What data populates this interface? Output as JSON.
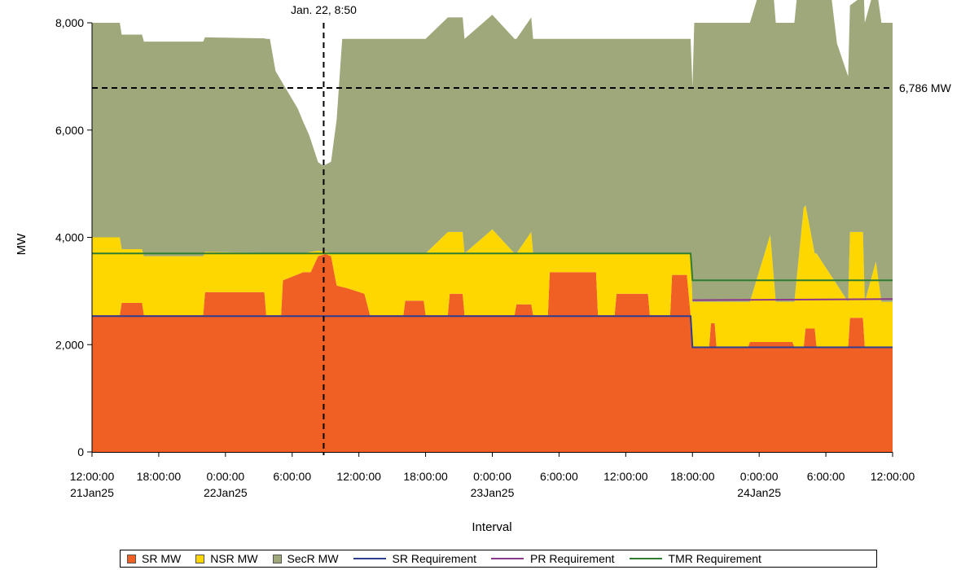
{
  "chart_data": {
    "type": "area",
    "title": "",
    "xlabel": "Interval",
    "ylabel": "MW",
    "ylim": [
      0,
      8000
    ],
    "xlim": [
      "2025-01-21T12:00",
      "2025-01-24T12:00"
    ],
    "y_ticks": [
      0,
      2000,
      4000,
      6000,
      8000
    ],
    "y_tick_labels": [
      "0",
      "2,000",
      "4,000",
      "6,000",
      "8,000"
    ],
    "x_ticks": [
      {
        "time": "2025-01-21T12:00",
        "label": "12:00:00",
        "date_label": "21Jan25"
      },
      {
        "time": "2025-01-21T18:00",
        "label": "18:00:00",
        "date_label": ""
      },
      {
        "time": "2025-01-22T00:00",
        "label": "0:00:00",
        "date_label": "22Jan25"
      },
      {
        "time": "2025-01-22T06:00",
        "label": "6:00:00",
        "date_label": ""
      },
      {
        "time": "2025-01-22T12:00",
        "label": "12:00:00",
        "date_label": ""
      },
      {
        "time": "2025-01-22T18:00",
        "label": "18:00:00",
        "date_label": ""
      },
      {
        "time": "2025-01-23T00:00",
        "label": "0:00:00",
        "date_label": "23Jan25"
      },
      {
        "time": "2025-01-23T06:00",
        "label": "6:00:00",
        "date_label": ""
      },
      {
        "time": "2025-01-23T12:00",
        "label": "12:00:00",
        "date_label": ""
      },
      {
        "time": "2025-01-23T18:00",
        "label": "18:00:00",
        "date_label": ""
      },
      {
        "time": "2025-01-24T00:00",
        "label": "0:00:00",
        "date_label": "24Jan25"
      },
      {
        "time": "2025-01-24T06:00",
        "label": "6:00:00",
        "date_label": ""
      },
      {
        "time": "2025-01-24T12:00",
        "label": "12:00:00",
        "date_label": ""
      }
    ],
    "stack_order": [
      "SR MW",
      "NSR MW",
      "SecR MW"
    ],
    "series": [
      {
        "name": "SR MW",
        "kind": "area",
        "color": "#F05F24",
        "points": [
          [
            "2025-01-21T12:00",
            2550
          ],
          [
            "2025-01-21T14:30",
            2550
          ],
          [
            "2025-01-21T14:40",
            2780
          ],
          [
            "2025-01-21T16:30",
            2780
          ],
          [
            "2025-01-21T16:40",
            2550
          ],
          [
            "2025-01-21T22:00",
            2550
          ],
          [
            "2025-01-21T22:10",
            2980
          ],
          [
            "2025-01-22T03:30",
            2980
          ],
          [
            "2025-01-22T03:40",
            2550
          ],
          [
            "2025-01-22T05:00",
            2550
          ],
          [
            "2025-01-22T05:10",
            3200
          ],
          [
            "2025-01-22T07:00",
            3350
          ],
          [
            "2025-01-22T07:40",
            3350
          ],
          [
            "2025-01-22T08:20",
            3650
          ],
          [
            "2025-01-22T09:00",
            3690
          ],
          [
            "2025-01-22T09:30",
            3650
          ],
          [
            "2025-01-22T10:00",
            3100
          ],
          [
            "2025-01-22T11:00",
            3050
          ],
          [
            "2025-01-22T12:30",
            2950
          ],
          [
            "2025-01-22T13:00",
            2550
          ],
          [
            "2025-01-22T16:00",
            2550
          ],
          [
            "2025-01-22T16:10",
            2820
          ],
          [
            "2025-01-22T17:50",
            2820
          ],
          [
            "2025-01-22T18:00",
            2550
          ],
          [
            "2025-01-22T20:00",
            2550
          ],
          [
            "2025-01-22T20:10",
            2950
          ],
          [
            "2025-01-22T21:20",
            2950
          ],
          [
            "2025-01-22T21:30",
            2550
          ],
          [
            "2025-01-23T00:00",
            2550
          ],
          [
            "2025-01-23T02:00",
            2550
          ],
          [
            "2025-01-23T02:10",
            2750
          ],
          [
            "2025-01-23T03:30",
            2750
          ],
          [
            "2025-01-23T03:40",
            2550
          ],
          [
            "2025-01-23T05:00",
            2550
          ],
          [
            "2025-01-23T05:10",
            3350
          ],
          [
            "2025-01-23T09:20",
            3350
          ],
          [
            "2025-01-23T09:30",
            2550
          ],
          [
            "2025-01-23T11:00",
            2550
          ],
          [
            "2025-01-23T11:10",
            2950
          ],
          [
            "2025-01-23T14:00",
            2950
          ],
          [
            "2025-01-23T14:10",
            2550
          ],
          [
            "2025-01-23T16:00",
            2550
          ],
          [
            "2025-01-23T16:10",
            3300
          ],
          [
            "2025-01-23T17:30",
            3300
          ],
          [
            "2025-01-23T17:50",
            2550
          ],
          [
            "2025-01-23T18:00",
            1950
          ],
          [
            "2025-01-23T19:30",
            1950
          ],
          [
            "2025-01-23T19:40",
            2400
          ],
          [
            "2025-01-23T20:00",
            2400
          ],
          [
            "2025-01-23T20:10",
            1950
          ],
          [
            "2025-01-23T23:00",
            1950
          ],
          [
            "2025-01-23T23:10",
            2050
          ],
          [
            "2025-01-24T03:00",
            2050
          ],
          [
            "2025-01-24T03:10",
            1950
          ],
          [
            "2025-01-24T04:00",
            1950
          ],
          [
            "2025-01-24T04:10",
            2300
          ],
          [
            "2025-01-24T05:00",
            2300
          ],
          [
            "2025-01-24T05:10",
            1950
          ],
          [
            "2025-01-24T08:00",
            1950
          ],
          [
            "2025-01-24T08:10",
            2500
          ],
          [
            "2025-01-24T09:20",
            2500
          ],
          [
            "2025-01-24T09:30",
            1950
          ],
          [
            "2025-01-24T12:00",
            1950
          ]
        ]
      },
      {
        "name": "NSR MW",
        "kind": "area",
        "color": "#FFD700",
        "points": [
          [
            "2025-01-21T12:00",
            1450
          ],
          [
            "2025-01-21T14:30",
            1450
          ],
          [
            "2025-01-21T14:40",
            1000
          ],
          [
            "2025-01-21T16:30",
            1000
          ],
          [
            "2025-01-21T16:40",
            1100
          ],
          [
            "2025-01-21T22:00",
            1100
          ],
          [
            "2025-01-21T22:10",
            750
          ],
          [
            "2025-01-22T03:30",
            730
          ],
          [
            "2025-01-22T03:40",
            1150
          ],
          [
            "2025-01-22T05:00",
            1150
          ],
          [
            "2025-01-22T05:10",
            500
          ],
          [
            "2025-01-22T07:00",
            350
          ],
          [
            "2025-01-22T07:40",
            380
          ],
          [
            "2025-01-22T08:20",
            100
          ],
          [
            "2025-01-22T09:00",
            40
          ],
          [
            "2025-01-22T09:30",
            60
          ],
          [
            "2025-01-22T10:00",
            600
          ],
          [
            "2025-01-22T11:00",
            650
          ],
          [
            "2025-01-22T12:30",
            750
          ],
          [
            "2025-01-22T13:00",
            1150
          ],
          [
            "2025-01-22T16:00",
            1150
          ],
          [
            "2025-01-22T16:10",
            880
          ],
          [
            "2025-01-22T17:50",
            880
          ],
          [
            "2025-01-22T18:00",
            1150
          ],
          [
            "2025-01-22T20:00",
            1550
          ],
          [
            "2025-01-22T20:10",
            1150
          ],
          [
            "2025-01-22T21:20",
            1150
          ],
          [
            "2025-01-22T21:30",
            1150
          ],
          [
            "2025-01-23T00:00",
            1600
          ],
          [
            "2025-01-23T02:00",
            1150
          ],
          [
            "2025-01-23T02:10",
            950
          ],
          [
            "2025-01-23T03:30",
            1350
          ],
          [
            "2025-01-23T03:40",
            1150
          ],
          [
            "2025-01-23T05:00",
            1150
          ],
          [
            "2025-01-23T05:10",
            350
          ],
          [
            "2025-01-23T09:20",
            350
          ],
          [
            "2025-01-23T09:30",
            1150
          ],
          [
            "2025-01-23T11:00",
            1150
          ],
          [
            "2025-01-23T11:10",
            750
          ],
          [
            "2025-01-23T14:00",
            750
          ],
          [
            "2025-01-23T14:10",
            1150
          ],
          [
            "2025-01-23T16:00",
            1150
          ],
          [
            "2025-01-23T16:10",
            400
          ],
          [
            "2025-01-23T17:30",
            400
          ],
          [
            "2025-01-23T17:50",
            1150
          ],
          [
            "2025-01-23T18:00",
            850
          ],
          [
            "2025-01-23T19:30",
            850
          ],
          [
            "2025-01-23T19:40",
            400
          ],
          [
            "2025-01-23T20:00",
            400
          ],
          [
            "2025-01-23T20:10",
            850
          ],
          [
            "2025-01-23T23:00",
            850
          ],
          [
            "2025-01-23T23:10",
            750
          ],
          [
            "2025-01-24T01:00",
            2000
          ],
          [
            "2025-01-24T01:30",
            750
          ],
          [
            "2025-01-24T03:00",
            750
          ],
          [
            "2025-01-24T03:10",
            850
          ],
          [
            "2025-01-24T04:00",
            2600
          ],
          [
            "2025-01-24T04:10",
            2300
          ],
          [
            "2025-01-24T05:00",
            1400
          ],
          [
            "2025-01-24T05:10",
            1750
          ],
          [
            "2025-01-24T08:00",
            850
          ],
          [
            "2025-01-24T08:10",
            1600
          ],
          [
            "2025-01-24T09:20",
            1600
          ],
          [
            "2025-01-24T09:30",
            850
          ],
          [
            "2025-01-24T10:30",
            1600
          ],
          [
            "2025-01-24T11:00",
            850
          ],
          [
            "2025-01-24T12:00",
            850
          ]
        ]
      },
      {
        "name": "SecR MW",
        "kind": "area",
        "color": "#9EA87A",
        "points": [
          [
            "2025-01-21T12:00",
            4000
          ],
          [
            "2025-01-22T04:00",
            4000
          ],
          [
            "2025-01-22T04:30",
            3400
          ],
          [
            "2025-01-22T06:30",
            2700
          ],
          [
            "2025-01-22T07:30",
            2200
          ],
          [
            "2025-01-22T08:20",
            1650
          ],
          [
            "2025-01-22T08:50",
            1600
          ],
          [
            "2025-01-22T09:30",
            1700
          ],
          [
            "2025-01-22T10:00",
            2500
          ],
          [
            "2025-01-22T10:30",
            4000
          ],
          [
            "2025-01-23T00:00",
            4000
          ],
          [
            "2025-01-23T18:00",
            4000
          ],
          [
            "2025-01-23T18:10",
            5200
          ],
          [
            "2025-01-24T06:30",
            5200
          ],
          [
            "2025-01-24T07:00",
            4500
          ],
          [
            "2025-01-24T08:00",
            4200
          ],
          [
            "2025-01-24T09:00",
            4350
          ],
          [
            "2025-01-24T09:30",
            5200
          ],
          [
            "2025-01-24T12:00",
            5200
          ]
        ]
      },
      {
        "name": "SR Requirement",
        "kind": "line",
        "color": "#2E3F8F",
        "points": [
          [
            "2025-01-21T12:00",
            2530
          ],
          [
            "2025-01-23T17:50",
            2530
          ],
          [
            "2025-01-23T18:00",
            1950
          ],
          [
            "2025-01-24T12:00",
            1950
          ]
        ]
      },
      {
        "name": "PR Requirement",
        "kind": "line",
        "color": "#8B3A8B",
        "points": [
          [
            "2025-01-23T18:00",
            2830
          ],
          [
            "2025-01-24T12:00",
            2850
          ]
        ]
      },
      {
        "name": "TMR Requirement",
        "kind": "line",
        "color": "#2E7D32",
        "points": [
          [
            "2025-01-21T12:00",
            3700
          ],
          [
            "2025-01-23T17:50",
            3700
          ],
          [
            "2025-01-23T18:00",
            3200
          ],
          [
            "2025-01-24T12:00",
            3200
          ]
        ]
      }
    ],
    "reference_lines": [
      {
        "orientation": "horizontal",
        "y": 6786,
        "label": "6,786 MW",
        "style": "dashed"
      },
      {
        "orientation": "vertical",
        "x": "2025-01-22T08:50",
        "label": "Jan. 22, 8:50",
        "style": "dashed"
      }
    ],
    "grid": false,
    "legend": {
      "position": "bottom",
      "items": [
        {
          "label": "SR MW",
          "marker": "square",
          "color": "#F05F24"
        },
        {
          "label": "NSR MW",
          "marker": "square",
          "color": "#FFD700"
        },
        {
          "label": "SecR MW",
          "marker": "square",
          "color": "#9EA87A"
        },
        {
          "label": "SR Requirement",
          "marker": "line",
          "color": "#2E3F8F"
        },
        {
          "label": "PR Requirement",
          "marker": "line",
          "color": "#8B3A8B"
        },
        {
          "label": "TMR Requirement",
          "marker": "line",
          "color": "#2E7D32"
        }
      ]
    }
  }
}
